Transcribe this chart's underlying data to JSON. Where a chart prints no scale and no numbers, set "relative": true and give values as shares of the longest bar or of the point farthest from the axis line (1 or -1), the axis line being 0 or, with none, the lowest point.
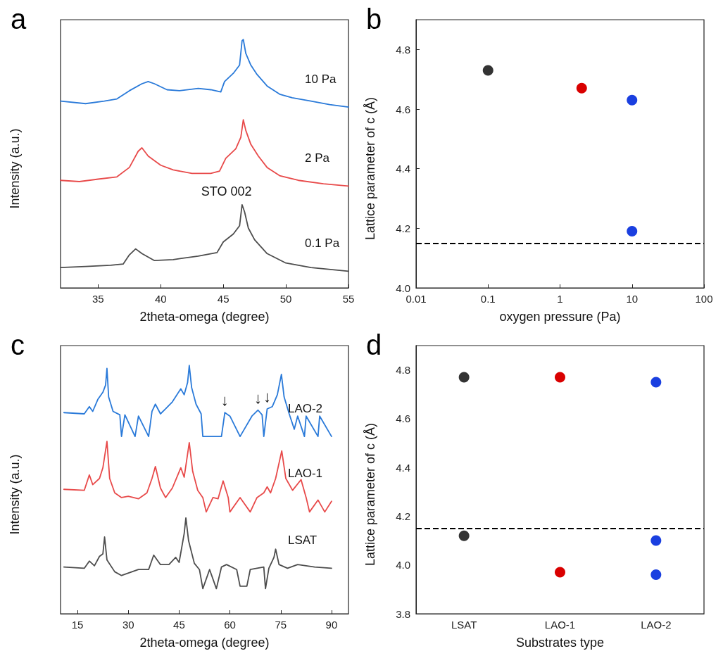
{
  "chart_data": [
    {
      "type": "line",
      "title": "a",
      "xlabel": "2theta-omega (degree)",
      "ylabel": "Intensity (a.u.)",
      "relative": true,
      "marker": "none",
      "tick_labels": "x",
      "xlim": [
        32,
        55
      ],
      "xticks": [
        35,
        40,
        45,
        50,
        55
      ],
      "annotations": [
        "STO 002"
      ],
      "series": [
        {
          "name": "10 Pa",
          "color": "#2a7ad9",
          "x": [
            32,
            34,
            35.5,
            36.5,
            37.5,
            38.5,
            39,
            39.5,
            40.5,
            41.5,
            43,
            44,
            44.8,
            45.1,
            45.8,
            46.3,
            46.5,
            46.6,
            46.8,
            47.2,
            47.7,
            48.5,
            49.5,
            50.5,
            52,
            53.5,
            55
          ],
          "values": [
            0.752,
            0.742,
            0.752,
            0.761,
            0.794,
            0.822,
            0.831,
            0.822,
            0.798,
            0.794,
            0.803,
            0.798,
            0.789,
            0.831,
            0.864,
            0.897,
            0.995,
            1.0,
            0.944,
            0.897,
            0.859,
            0.813,
            0.78,
            0.766,
            0.752,
            0.738,
            0.728
          ]
        },
        {
          "name": "2 Pa",
          "color": "#e84a4a",
          "x": [
            32,
            33.5,
            35,
            36.5,
            37.5,
            38.2,
            38.5,
            39,
            40,
            41,
            42.5,
            44,
            44.7,
            45.2,
            46,
            46.4,
            46.6,
            46.8,
            47.2,
            47.8,
            48.5,
            49.5,
            51,
            53,
            55
          ],
          "values": [
            0.433,
            0.428,
            0.438,
            0.447,
            0.485,
            0.55,
            0.564,
            0.531,
            0.494,
            0.475,
            0.461,
            0.461,
            0.47,
            0.522,
            0.56,
            0.606,
            0.677,
            0.634,
            0.578,
            0.531,
            0.485,
            0.452,
            0.433,
            0.419,
            0.41
          ]
        },
        {
          "name": "0.1 Pa",
          "color": "#4d4d4d",
          "x": [
            32,
            34,
            36,
            37,
            37.5,
            38,
            38.5,
            39.5,
            41,
            43,
            44.5,
            45,
            45.8,
            46.3,
            46.5,
            46.7,
            47,
            47.5,
            48.5,
            50,
            52,
            55
          ],
          "values": [
            0.082,
            0.086,
            0.091,
            0.096,
            0.133,
            0.157,
            0.138,
            0.11,
            0.114,
            0.128,
            0.142,
            0.185,
            0.217,
            0.25,
            0.335,
            0.306,
            0.241,
            0.194,
            0.138,
            0.1,
            0.082,
            0.067
          ]
        }
      ]
    },
    {
      "type": "scatter",
      "title": "b",
      "xlabel": "oxygen pressure (Pa)",
      "ylabel": "Lattice parameter of c (Å)",
      "log": "x",
      "marker": "circle",
      "xlim": [
        0.01,
        100
      ],
      "xticks": [
        0.01,
        0.1,
        1,
        10,
        100
      ],
      "ylim": [
        4.0,
        4.9
      ],
      "yticks": [
        {
          "value": 4.0,
          "label": "4.0"
        },
        {
          "value": 4.2,
          "label": "4.2"
        },
        {
          "value": 4.4,
          "label": "4.4"
        },
        {
          "value": 4.6,
          "label": "4.6"
        },
        {
          "value": 4.8,
          "label": "4.8"
        }
      ],
      "x": [
        0.1,
        2,
        10,
        10
      ],
      "values": [
        4.73,
        4.67,
        4.63,
        4.19
      ],
      "colors": [
        "#333333",
        "#d90000",
        "#1a3fe0",
        "#1a3fe0"
      ],
      "ref_lines": [
        {
          "axis": "y",
          "value": 4.15,
          "color": "#000000",
          "line_style": "dashed"
        }
      ]
    },
    {
      "type": "line",
      "title": "c",
      "xlabel": "2theta-omega (degree)",
      "ylabel": "Intensity (a.u.)",
      "relative": true,
      "marker": "none",
      "tick_labels": "x",
      "xlim": [
        10,
        95
      ],
      "xticks": [
        15,
        30,
        45,
        60,
        75,
        90
      ],
      "annotations": [
        {
          "text": "↓",
          "x": 58.5,
          "y": 0.81
        },
        {
          "text": "↓",
          "x": 68.3,
          "y": 0.82
        },
        {
          "text": "↓",
          "x": 71,
          "y": 0.825
        }
      ],
      "series": [
        {
          "name": "LAO-2",
          "color": "#2a7ad9",
          "x": [
            11,
            17,
            18.5,
            19.5,
            21,
            22.5,
            23.3,
            23.7,
            24.2,
            25.5,
            27.5,
            28,
            29,
            32,
            33,
            36,
            37,
            38,
            39.5,
            41,
            43,
            45.5,
            46.5,
            47.5,
            48,
            48.7,
            50,
            51.5,
            52,
            57.5,
            58.5,
            60,
            63,
            66.5,
            68.3,
            69.5,
            70,
            71,
            72.5,
            74,
            75.2,
            76,
            77.5,
            79,
            80,
            82,
            82.5,
            86,
            86.5,
            90
          ],
          "values": [
            0.81,
            0.805,
            0.834,
            0.815,
            0.863,
            0.892,
            0.921,
            0.988,
            0.873,
            0.815,
            0.801,
            0.714,
            0.801,
            0.714,
            0.796,
            0.714,
            0.815,
            0.844,
            0.805,
            0.825,
            0.853,
            0.906,
            0.882,
            0.931,
            1.0,
            0.911,
            0.844,
            0.805,
            0.714,
            0.714,
            0.81,
            0.796,
            0.714,
            0.796,
            0.82,
            0.801,
            0.714,
            0.825,
            0.834,
            0.882,
            0.964,
            0.873,
            0.805,
            0.743,
            0.796,
            0.714,
            0.796,
            0.714,
            0.796,
            0.714
          ]
        },
        {
          "name": "LAO-1",
          "color": "#e84a4a",
          "x": [
            11,
            17,
            18.5,
            19.5,
            21.5,
            22.5,
            23.7,
            24.5,
            26,
            28,
            30,
            33,
            35.5,
            37,
            38,
            39.5,
            41,
            43,
            45.5,
            46.5,
            48,
            49,
            50.5,
            52,
            53,
            55,
            56.5,
            58,
            59.5,
            60,
            63,
            66,
            68,
            70,
            71,
            72,
            73.5,
            75.3,
            76.5,
            78.5,
            81,
            82.5,
            83.5,
            86,
            88,
            90
          ],
          "values": [
            0.501,
            0.497,
            0.559,
            0.52,
            0.545,
            0.588,
            0.694,
            0.545,
            0.487,
            0.468,
            0.473,
            0.463,
            0.487,
            0.545,
            0.593,
            0.506,
            0.468,
            0.506,
            0.588,
            0.55,
            0.689,
            0.574,
            0.497,
            0.468,
            0.41,
            0.468,
            0.463,
            0.535,
            0.468,
            0.41,
            0.468,
            0.41,
            0.468,
            0.487,
            0.511,
            0.487,
            0.545,
            0.656,
            0.545,
            0.497,
            0.54,
            0.468,
            0.41,
            0.458,
            0.41,
            0.453
          ]
        },
        {
          "name": "LSAT",
          "color": "#4d4d4d",
          "x": [
            11,
            17,
            18.5,
            20,
            21.5,
            22.5,
            23,
            23.7,
            26,
            28,
            33,
            36,
            37.5,
            39.5,
            42,
            44,
            45,
            46.5,
            47,
            47.8,
            49.5,
            51,
            52,
            54,
            56,
            57.5,
            59,
            62,
            63,
            65,
            66,
            70,
            70.5,
            71.5,
            73,
            73.5,
            74.5,
            77,
            80,
            85,
            90
          ],
          "values": [
            0.188,
            0.183,
            0.212,
            0.193,
            0.231,
            0.241,
            0.309,
            0.217,
            0.169,
            0.154,
            0.178,
            0.178,
            0.236,
            0.198,
            0.198,
            0.227,
            0.207,
            0.323,
            0.386,
            0.294,
            0.203,
            0.178,
            0.101,
            0.178,
            0.101,
            0.188,
            0.198,
            0.178,
            0.111,
            0.111,
            0.178,
            0.188,
            0.101,
            0.183,
            0.227,
            0.26,
            0.198,
            0.183,
            0.198,
            0.188,
            0.183
          ]
        }
      ]
    },
    {
      "type": "scatter",
      "title": "d",
      "xlabel": "Substrates type",
      "ylabel": "Lattice parameter of c (Å)",
      "marker": "circle",
      "categories": [
        "LSAT",
        "LAO-1",
        "LAO-2"
      ],
      "ylim": [
        3.8,
        4.9
      ],
      "yticks": [
        {
          "value": 3.8,
          "label": "3.8"
        },
        {
          "value": 4.0,
          "label": "4.0"
        },
        {
          "value": 4.2,
          "label": "4.2"
        },
        {
          "value": 4.4,
          "label": "4.4"
        },
        {
          "value": 4.6,
          "label": "4.6"
        },
        {
          "value": 4.8,
          "label": "4.8"
        }
      ],
      "series": [
        {
          "x": [
            "LSAT",
            "LSAT",
            "LAO-1",
            "LAO-1",
            "LAO-2",
            "LAO-2",
            "LAO-2"
          ],
          "values": [
            4.77,
            4.12,
            4.77,
            3.97,
            4.75,
            4.1,
            3.96
          ],
          "colors": [
            "#333333",
            "#333333",
            "#d90000",
            "#d90000",
            "#1a3fe0",
            "#1a3fe0",
            "#1a3fe0"
          ]
        }
      ],
      "ref_lines": [
        {
          "axis": "y",
          "value": 4.15,
          "color": "#000000",
          "line_style": "dashed"
        }
      ]
    }
  ]
}
